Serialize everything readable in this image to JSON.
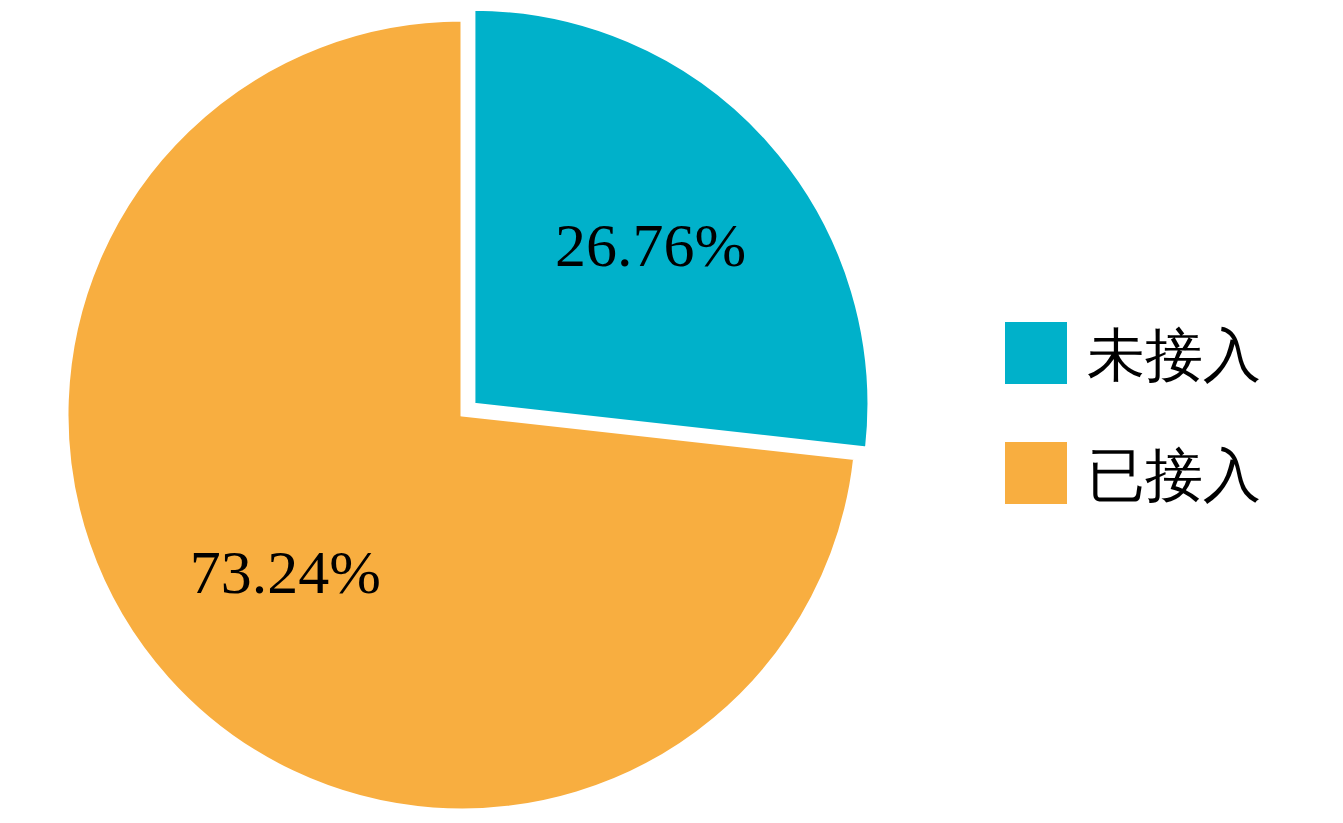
{
  "chart_data": {
    "type": "pie",
    "categories": [
      "未接入",
      "已接入"
    ],
    "values": [
      26.76,
      73.24
    ],
    "colors": [
      "#00b1ca",
      "#f8ae40"
    ],
    "value_labels": [
      "26.76%",
      "73.24%"
    ],
    "legend": "right"
  }
}
